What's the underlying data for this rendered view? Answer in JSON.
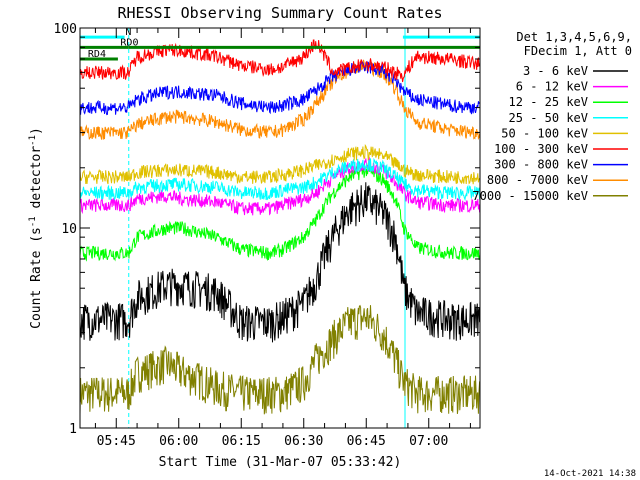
{
  "chart_data": {
    "type": "line",
    "title": "RHESSI Observing Summary Count Rates",
    "xlabel": "Start Time (31-Mar-07 05:33:42)",
    "ylabel": "Count Rate (s⁻¹ detector⁻¹)",
    "ylabel_prefix": "Count Rate (s",
    "ylabel_mid": " detector",
    "ylabel_suffix": ")",
    "ylabel_sup": "-1",
    "y_scale": "log",
    "ylim": [
      1,
      100
    ],
    "y_ticks": [
      {
        "value": 1,
        "label": "1"
      },
      {
        "value": 10,
        "label": "10"
      },
      {
        "value": 100,
        "label": "100"
      }
    ],
    "x_minutes_range": [
      -8.7,
      87.3
    ],
    "x_ticks": [
      {
        "minute": 0,
        "label": "05:45"
      },
      {
        "minute": 15,
        "label": "06:00"
      },
      {
        "minute": 30,
        "label": "06:15"
      },
      {
        "minute": 45,
        "label": "06:30"
      },
      {
        "minute": 60,
        "label": "06:45"
      },
      {
        "minute": 75,
        "label": "07:00"
      }
    ],
    "legend": {
      "placement": "right",
      "header": [
        "Det 1,3,4,5,6,9,",
        "FDecim 1, Att 0"
      ],
      "entries": [
        {
          "label": "3 - 6 keV",
          "color": "#000000"
        },
        {
          "label": "6 - 12 keV",
          "color": "#ff00ff"
        },
        {
          "label": "12 - 25 keV",
          "color": "#00ff00"
        },
        {
          "label": "25 - 50 keV",
          "color": "#00ffff"
        },
        {
          "label": "50 - 100 keV",
          "color": "#e0c000"
        },
        {
          "label": "100 - 300 keV",
          "color": "#ff0000"
        },
        {
          "label": "300 - 800 keV",
          "color": "#0000ff"
        },
        {
          "label": "800 - 7000 keV",
          "color": "#ff8c00"
        },
        {
          "label": "7000 - 15000 keV",
          "color": "#808000"
        }
      ]
    },
    "series": [
      {
        "color": "#000000",
        "x": [
          -8.7,
          3,
          5,
          12,
          16,
          24,
          30,
          37,
          40,
          45,
          48,
          52,
          56,
          60,
          64,
          67,
          69,
          72,
          80,
          87.3
        ],
        "values": [
          3.5,
          3.5,
          4.5,
          5.2,
          5.2,
          4.8,
          3.4,
          3.4,
          3.6,
          4.2,
          5.5,
          9,
          12.5,
          14,
          12,
          9,
          5,
          3.8,
          3.5,
          3.5
        ]
      },
      {
        "color": "#ff00ff",
        "x": [
          -8.7,
          3,
          5,
          12,
          16,
          24,
          30,
          37,
          40,
          45,
          48,
          52,
          56,
          60,
          64,
          67,
          69,
          72,
          80,
          87.3
        ],
        "values": [
          13,
          13,
          14,
          14.5,
          14,
          13.5,
          12.5,
          12.5,
          13,
          14,
          15,
          18,
          20,
          21,
          19.5,
          17,
          15,
          13.5,
          13,
          13
        ]
      },
      {
        "color": "#00ff00",
        "x": [
          -8.7,
          3,
          5,
          12,
          16,
          24,
          30,
          37,
          40,
          45,
          48,
          52,
          56,
          60,
          64,
          67,
          69,
          72,
          80,
          87.3
        ],
        "values": [
          7.5,
          7.5,
          9,
          10,
          10,
          9,
          7.8,
          7.5,
          7.8,
          9,
          11,
          15,
          18,
          19.5,
          17.5,
          14,
          10,
          8,
          7.5,
          7.5
        ]
      },
      {
        "color": "#00ffff",
        "x": [
          -8.7,
          3,
          5,
          12,
          16,
          24,
          30,
          37,
          40,
          45,
          48,
          52,
          56,
          60,
          64,
          67,
          69,
          72,
          80,
          87.3
        ],
        "values": [
          15,
          15,
          16,
          16.5,
          16.5,
          16,
          15,
          15,
          15.5,
          16,
          17,
          19,
          20.5,
          21,
          20,
          18,
          16.5,
          15.5,
          15,
          15
        ]
      },
      {
        "color": "#e0c000",
        "x": [
          -8.7,
          3,
          5,
          12,
          16,
          24,
          30,
          37,
          40,
          45,
          48,
          52,
          56,
          60,
          64,
          67,
          69,
          72,
          80,
          87.3
        ],
        "values": [
          18,
          18,
          19,
          19.5,
          19.5,
          19,
          18,
          18,
          18.5,
          19.5,
          20.5,
          22,
          23.5,
          24,
          23,
          21,
          19.5,
          18.5,
          18,
          18
        ]
      },
      {
        "color": "#ff0000",
        "x": [
          -8.7,
          3,
          5,
          12,
          16,
          24,
          30,
          37,
          40,
          45,
          48,
          52,
          56,
          60,
          64,
          67,
          69,
          72,
          80,
          87.3
        ],
        "values": [
          60,
          60,
          72,
          78,
          77,
          72,
          65,
          62,
          64,
          72,
          85,
          60,
          63,
          66,
          64,
          60,
          58,
          72,
          70,
          66
        ]
      },
      {
        "color": "#0000ff",
        "x": [
          -8.7,
          3,
          5,
          12,
          16,
          24,
          30,
          37,
          40,
          45,
          48,
          52,
          56,
          60,
          64,
          67,
          69,
          72,
          80,
          87.3
        ],
        "values": [
          40,
          40,
          44,
          48,
          48,
          46,
          42,
          40,
          41,
          44,
          49,
          57,
          62,
          64,
          61,
          55,
          48,
          44,
          41,
          40
        ]
      },
      {
        "color": "#ff8c00",
        "x": [
          -8.7,
          3,
          5,
          12,
          16,
          24,
          30,
          37,
          40,
          45,
          48,
          52,
          56,
          60,
          64,
          67,
          69,
          72,
          80,
          87.3
        ],
        "values": [
          30,
          30,
          33,
          36,
          36,
          34,
          31,
          30,
          31,
          35,
          42,
          54,
          62,
          65,
          60,
          50,
          40,
          34,
          31,
          30
        ]
      },
      {
        "color": "#808000",
        "x": [
          -8.7,
          3,
          5,
          12,
          16,
          24,
          30,
          37,
          40,
          45,
          48,
          52,
          56,
          60,
          64,
          67,
          69,
          72,
          80,
          87.3
        ],
        "values": [
          1.5,
          1.5,
          1.9,
          2.1,
          1.9,
          1.6,
          1.5,
          1.5,
          1.5,
          1.7,
          2.2,
          2.8,
          3.4,
          3.6,
          3.0,
          2.2,
          1.7,
          1.5,
          1.5,
          1.5
        ]
      }
    ],
    "flags": [
      {
        "label": "RD0",
        "color": "#008000",
        "value": 80
      },
      {
        "label": "RD4",
        "color": "#008000",
        "value": 70
      },
      {
        "label": "N",
        "color": "#00ffff",
        "value": 90
      }
    ],
    "vertical_markers": [
      -8.7,
      3.0,
      69.3,
      87.3
    ],
    "timestamp": "14-Oct-2021 14:38"
  }
}
